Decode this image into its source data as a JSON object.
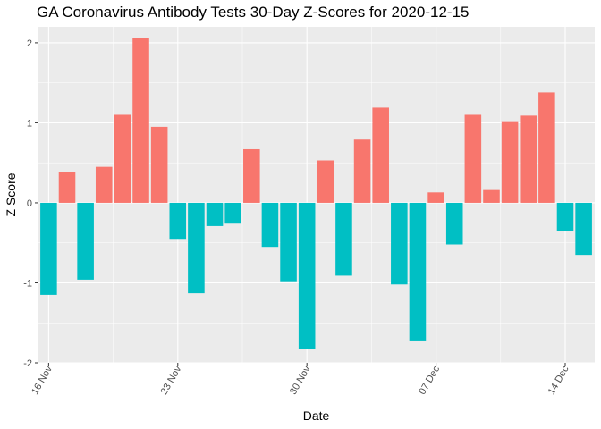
{
  "chart_data": {
    "type": "bar",
    "title": "GA Coronavirus Antibody Tests 30-Day Z-Scores for 2020-12-15",
    "xlabel": "Date",
    "ylabel": "Z Score",
    "x": [
      "2020-11-16",
      "2020-11-17",
      "2020-11-18",
      "2020-11-19",
      "2020-11-20",
      "2020-11-21",
      "2020-11-22",
      "2020-11-23",
      "2020-11-24",
      "2020-11-25",
      "2020-11-26",
      "2020-11-27",
      "2020-11-28",
      "2020-11-29",
      "2020-11-30",
      "2020-12-01",
      "2020-12-02",
      "2020-12-03",
      "2020-12-04",
      "2020-12-05",
      "2020-12-06",
      "2020-12-07",
      "2020-12-08",
      "2020-12-09",
      "2020-12-10",
      "2020-12-11",
      "2020-12-12",
      "2020-12-13",
      "2020-12-14",
      "2020-12-15"
    ],
    "values": [
      -1.15,
      0.38,
      -0.96,
      0.45,
      1.1,
      2.06,
      0.95,
      -0.45,
      -1.13,
      -0.29,
      -0.26,
      0.67,
      -0.55,
      -0.98,
      -1.83,
      0.53,
      -0.91,
      0.79,
      1.19,
      -1.02,
      -1.72,
      0.13,
      -0.52,
      1.1,
      0.16,
      1.02,
      1.09,
      1.38,
      -0.35,
      -0.65
    ],
    "ylim": [
      -2.0,
      2.2
    ],
    "yticks": [
      -2,
      -1,
      0,
      1,
      2
    ],
    "ytick_labels": [
      "-2",
      "-1",
      "0",
      "1",
      "2"
    ],
    "xticks": [
      "2020-11-16",
      "2020-11-23",
      "2020-11-30",
      "2020-12-07",
      "2020-12-14"
    ],
    "xtick_labels": [
      "16 Nov",
      "23 Nov",
      "30 Nov",
      "07 Dec",
      "14 Dec"
    ],
    "positive_color": "#F8766D",
    "negative_color": "#00BFC4",
    "panel_background": "#EBEBEB",
    "grid": true,
    "legend": "none"
  }
}
